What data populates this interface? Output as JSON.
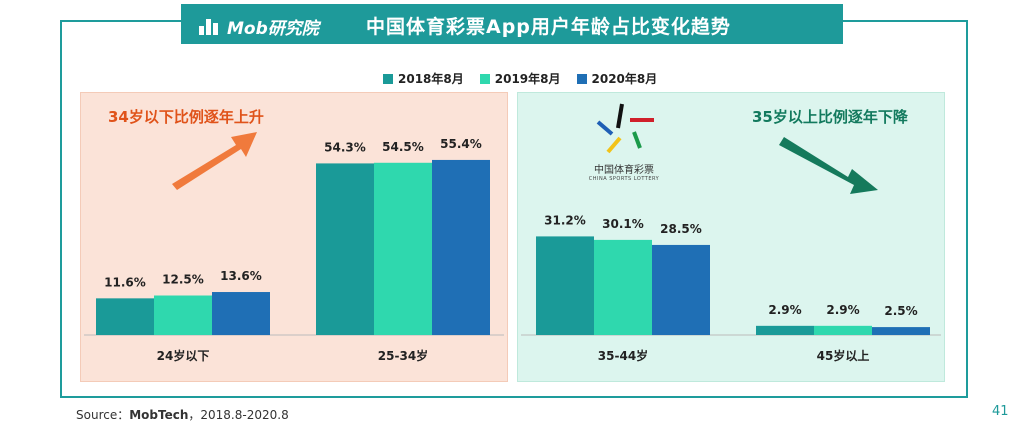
{
  "header": {
    "logo_text": "Mob研究院",
    "title": "中国体育彩票App用户年龄占比变化趋势"
  },
  "annotations": {
    "left": "34岁以下比例逐年上升",
    "right": "35岁以上比例逐年下降"
  },
  "brand": {
    "name": "中国体育彩票",
    "sub": "CHINA SPORTS LOTTERY"
  },
  "footer": {
    "source_prefix": "Source：",
    "source_org": "MobTech",
    "source_range": "，2018.8-2020.8",
    "page": "41"
  },
  "colors": {
    "s2018": "#1a9a98",
    "s2019": "#2fd8ae",
    "s2020": "#1f6fb5",
    "left_arrow": "#f07a3c",
    "right_arrow": "#157a5c"
  },
  "chart_data": {
    "type": "bar",
    "categories": [
      "24岁以下",
      "25-34岁",
      "35-44岁",
      "45岁以上"
    ],
    "series": [
      {
        "name": "2018年8月",
        "values": [
          11.6,
          54.3,
          31.2,
          2.9
        ]
      },
      {
        "name": "2019年8月",
        "values": [
          12.5,
          54.5,
          30.1,
          2.9
        ]
      },
      {
        "name": "2020年8月",
        "values": [
          13.6,
          55.4,
          28.5,
          2.5
        ]
      }
    ],
    "data_labels": [
      [
        "11.6%",
        "54.3%",
        "31.2%",
        "2.9%"
      ],
      [
        "12.5%",
        "54.5%",
        "30.1%",
        "2.9%"
      ],
      [
        "13.6%",
        "55.4%",
        "28.5%",
        "2.5%"
      ]
    ],
    "unit": "%",
    "legend_position": "top-center",
    "grid": false
  }
}
